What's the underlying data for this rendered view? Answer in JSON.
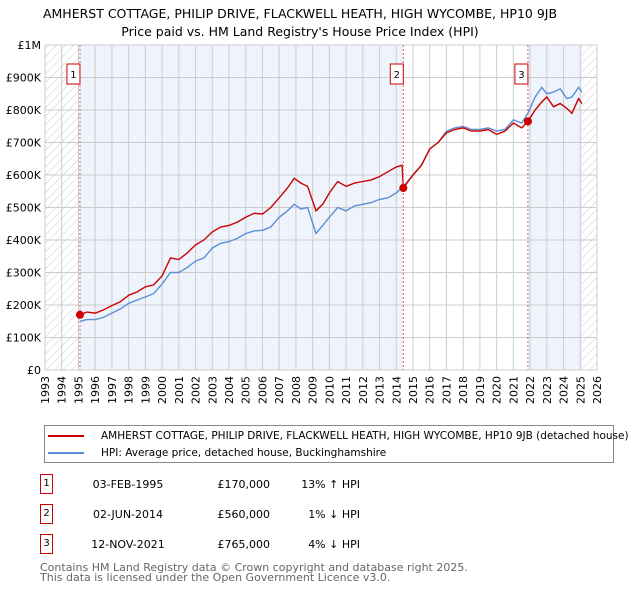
{
  "title_line1": "AMHERST COTTAGE, PHILIP DRIVE, FLACKWELL HEATH, HIGH WYCOMBE, HP10 9JB",
  "title_line2": "Price paid vs. HM Land Registry's House Price Index (HPI)",
  "chart_data": {
    "type": "line",
    "xlim": [
      1993,
      2026
    ],
    "ylim": [
      0,
      1000000
    ],
    "x_ticks": [
      "1993",
      "1994",
      "1995",
      "1996",
      "1997",
      "1998",
      "1999",
      "2000",
      "2001",
      "2002",
      "2003",
      "2004",
      "2005",
      "2006",
      "2007",
      "2008",
      "2009",
      "2010",
      "2011",
      "2012",
      "2013",
      "2014",
      "2015",
      "2016",
      "2017",
      "2018",
      "2019",
      "2020",
      "2021",
      "2022",
      "2023",
      "2024",
      "2025",
      "2026"
    ],
    "y_ticks": [
      {
        "v": 0,
        "label": "£0"
      },
      {
        "v": 100000,
        "label": "£100K"
      },
      {
        "v": 200000,
        "label": "£200K"
      },
      {
        "v": 300000,
        "label": "£300K"
      },
      {
        "v": 400000,
        "label": "£400K"
      },
      {
        "v": 500000,
        "label": "£500K"
      },
      {
        "v": 600000,
        "label": "£600K"
      },
      {
        "v": 700000,
        "label": "£700K"
      },
      {
        "v": 800000,
        "label": "£800K"
      },
      {
        "v": 900000,
        "label": "£900K"
      },
      {
        "v": 1000000,
        "label": "£1M"
      }
    ],
    "grid": true,
    "hatched_ranges": [
      [
        1993,
        1995.09
      ],
      [
        2025.1,
        2026
      ]
    ],
    "shaded_ranges": [
      [
        1995.09,
        2014.42
      ],
      [
        2021.87,
        2025.1
      ]
    ],
    "series": [
      {
        "name": "AMHERST COTTAGE, PHILIP DRIVE, FLACKWELL HEATH, HIGH WYCOMBE, HP10 9JB (detached house)",
        "color": "#cc0000",
        "x": [
          1995.09,
          1995.5,
          1996,
          1996.5,
          1997,
          1997.5,
          1998,
          1998.5,
          1999,
          1999.5,
          2000,
          2000.5,
          2001,
          2001.5,
          2002,
          2002.5,
          2003,
          2003.5,
          2004,
          2004.5,
          2005,
          2005.5,
          2006,
          2006.5,
          2007,
          2007.5,
          2007.9,
          2008.3,
          2008.7,
          2009.2,
          2009.6,
          2010,
          2010.5,
          2011,
          2011.5,
          2012,
          2012.5,
          2013,
          2013.5,
          2014,
          2014.35,
          2014.42,
          2015,
          2015.5,
          2016,
          2016.5,
          2017,
          2017.5,
          2018,
          2018.5,
          2019,
          2019.5,
          2020,
          2020.5,
          2021,
          2021.5,
          2021.87,
          2022.3,
          2022.7,
          2023,
          2023.4,
          2023.8,
          2024.2,
          2024.5,
          2024.9,
          2025.1
        ],
        "values": [
          170000,
          178000,
          175000,
          185000,
          198000,
          210000,
          230000,
          240000,
          256000,
          262000,
          290000,
          345000,
          340000,
          360000,
          385000,
          400000,
          425000,
          440000,
          445000,
          455000,
          470000,
          482000,
          480000,
          500000,
          530000,
          560000,
          590000,
          575000,
          565000,
          490000,
          510000,
          545000,
          580000,
          565000,
          575000,
          580000,
          585000,
          595000,
          610000,
          625000,
          630000,
          560000,
          600000,
          630000,
          680000,
          700000,
          730000,
          740000,
          745000,
          735000,
          735000,
          740000,
          725000,
          735000,
          760000,
          745000,
          765000,
          800000,
          825000,
          840000,
          810000,
          820000,
          805000,
          790000,
          835000,
          820000
        ]
      },
      {
        "name": "HPI: Average price, detached house, Buckinghamshire",
        "color": "#5b8fd4",
        "x": [
          1995.09,
          1995.5,
          1996,
          1996.5,
          1997,
          1997.5,
          1998,
          1998.5,
          1999,
          1999.5,
          2000,
          2000.5,
          2001,
          2001.5,
          2002,
          2002.5,
          2003,
          2003.5,
          2004,
          2004.5,
          2005,
          2005.5,
          2006,
          2006.5,
          2007,
          2007.5,
          2007.9,
          2008.3,
          2008.7,
          2009.2,
          2009.6,
          2010,
          2010.5,
          2011,
          2011.5,
          2012,
          2012.5,
          2013,
          2013.5,
          2014,
          2014.42,
          2015,
          2015.5,
          2016,
          2016.5,
          2017,
          2017.5,
          2018,
          2018.5,
          2019,
          2019.5,
          2020,
          2020.5,
          2021,
          2021.5,
          2021.87,
          2022.3,
          2022.7,
          2023,
          2023.4,
          2023.8,
          2024.2,
          2024.5,
          2024.9,
          2025.1
        ],
        "values": [
          150000,
          155000,
          155000,
          162000,
          175000,
          188000,
          205000,
          215000,
          225000,
          235000,
          265000,
          300000,
          300000,
          315000,
          335000,
          345000,
          375000,
          390000,
          395000,
          405000,
          420000,
          428000,
          430000,
          440000,
          470000,
          490000,
          510000,
          495000,
          500000,
          420000,
          445000,
          470000,
          500000,
          490000,
          505000,
          510000,
          515000,
          525000,
          530000,
          545000,
          565000,
          600000,
          630000,
          680000,
          700000,
          735000,
          745000,
          750000,
          740000,
          740000,
          745000,
          735000,
          740000,
          770000,
          760000,
          790000,
          840000,
          870000,
          850000,
          855000,
          865000,
          835000,
          840000,
          870000,
          855000
        ]
      }
    ],
    "markers": [
      {
        "label": "1",
        "x": 1995.09,
        "y": 170000
      },
      {
        "label": "2",
        "x": 2014.42,
        "y": 560000
      },
      {
        "label": "3",
        "x": 2021.87,
        "y": 765000
      }
    ]
  },
  "legend": {
    "red_label": "AMHERST COTTAGE, PHILIP DRIVE, FLACKWELL HEATH, HIGH WYCOMBE, HP10 9JB (detached house)",
    "blue_label": "HPI: Average price, detached house, Buckinghamshire"
  },
  "transactions": [
    {
      "num": "1",
      "date": "03-FEB-1995",
      "price": "£170,000",
      "hpi": "13% ↑ HPI"
    },
    {
      "num": "2",
      "date": "02-JUN-2014",
      "price": "£560,000",
      "hpi": "1% ↓ HPI"
    },
    {
      "num": "3",
      "date": "12-NOV-2021",
      "price": "£765,000",
      "hpi": "4% ↓ HPI"
    }
  ],
  "footer": {
    "line1": "Contains HM Land Registry data © Crown copyright and database right 2025.",
    "line2": "This data is licensed under the Open Government Licence v3.0."
  }
}
